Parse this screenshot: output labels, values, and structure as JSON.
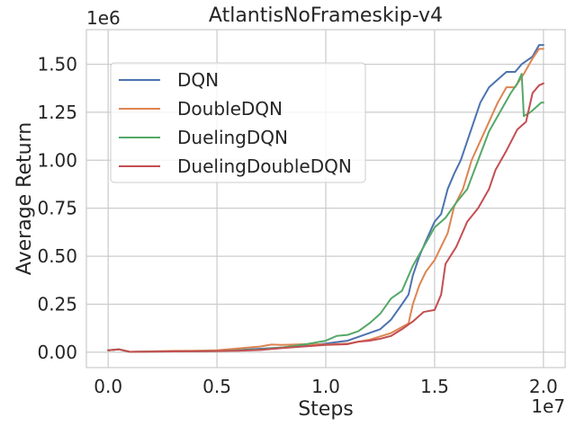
{
  "chart_data": {
    "type": "line",
    "title": "AtlantisNoFrameskip-v4",
    "xlabel": "Steps",
    "ylabel": "Average Return",
    "x_offset_label": "1e7",
    "y_offset_label": "1e6",
    "x_ticks": [
      0,
      5000000,
      10000000,
      15000000,
      20000000
    ],
    "x_tick_labels": [
      "0.0",
      "0.5",
      "1.0",
      "1.5",
      "2.0"
    ],
    "y_ticks": [
      0,
      250000,
      500000,
      750000,
      1000000,
      1250000,
      1500000
    ],
    "y_tick_labels": [
      "0.00",
      "0.25",
      "0.50",
      "0.75",
      "1.00",
      "1.25",
      "1.50"
    ],
    "xlim": [
      -1000000,
      21000000
    ],
    "ylim": [
      -80000,
      1680000
    ],
    "grid": true,
    "legend_position": "upper-left",
    "series": [
      {
        "name": "DQN",
        "color": "#4c72b0",
        "points": [
          [
            0,
            10000
          ],
          [
            500000,
            15000
          ],
          [
            1000000,
            2000
          ],
          [
            2000000,
            4000
          ],
          [
            3000000,
            5000
          ],
          [
            4000000,
            6000
          ],
          [
            5000000,
            8000
          ],
          [
            6000000,
            12000
          ],
          [
            7000000,
            18000
          ],
          [
            8000000,
            25000
          ],
          [
            9000000,
            33000
          ],
          [
            10000000,
            45000
          ],
          [
            11000000,
            60000
          ],
          [
            12000000,
            100000
          ],
          [
            12500000,
            120000
          ],
          [
            13000000,
            170000
          ],
          [
            13500000,
            250000
          ],
          [
            13800000,
            300000
          ],
          [
            14000000,
            400000
          ],
          [
            14300000,
            500000
          ],
          [
            14600000,
            580000
          ],
          [
            15000000,
            680000
          ],
          [
            15300000,
            720000
          ],
          [
            15600000,
            850000
          ],
          [
            15900000,
            930000
          ],
          [
            16200000,
            1000000
          ],
          [
            16500000,
            1100000
          ],
          [
            16800000,
            1200000
          ],
          [
            17100000,
            1300000
          ],
          [
            17500000,
            1380000
          ],
          [
            17900000,
            1420000
          ],
          [
            18300000,
            1460000
          ],
          [
            18700000,
            1460000
          ],
          [
            19000000,
            1500000
          ],
          [
            19500000,
            1540000
          ],
          [
            19800000,
            1600000
          ],
          [
            20000000,
            1600000
          ]
        ]
      },
      {
        "name": "DoubleDQN",
        "color": "#dd8452",
        "points": [
          [
            0,
            10000
          ],
          [
            500000,
            15000
          ],
          [
            1000000,
            2000
          ],
          [
            2000000,
            5000
          ],
          [
            3000000,
            7000
          ],
          [
            4000000,
            8000
          ],
          [
            5000000,
            10000
          ],
          [
            6000000,
            20000
          ],
          [
            7000000,
            30000
          ],
          [
            7500000,
            40000
          ],
          [
            8000000,
            38000
          ],
          [
            9000000,
            42000
          ],
          [
            10000000,
            40000
          ],
          [
            11000000,
            45000
          ],
          [
            12000000,
            65000
          ],
          [
            13000000,
            100000
          ],
          [
            13800000,
            150000
          ],
          [
            14000000,
            250000
          ],
          [
            14300000,
            350000
          ],
          [
            14600000,
            420000
          ],
          [
            15000000,
            480000
          ],
          [
            15300000,
            550000
          ],
          [
            15600000,
            620000
          ],
          [
            15900000,
            760000
          ],
          [
            16300000,
            850000
          ],
          [
            16700000,
            1000000
          ],
          [
            17100000,
            1100000
          ],
          [
            17500000,
            1200000
          ],
          [
            17900000,
            1300000
          ],
          [
            18300000,
            1380000
          ],
          [
            18700000,
            1380000
          ],
          [
            19100000,
            1450000
          ],
          [
            19500000,
            1530000
          ],
          [
            19800000,
            1580000
          ],
          [
            20000000,
            1580000
          ]
        ]
      },
      {
        "name": "DuelingDQN",
        "color": "#55a868",
        "points": [
          [
            0,
            10000
          ],
          [
            500000,
            15000
          ],
          [
            1000000,
            2000
          ],
          [
            2000000,
            3000
          ],
          [
            3000000,
            4000
          ],
          [
            4000000,
            5000
          ],
          [
            5000000,
            6000
          ],
          [
            6000000,
            10000
          ],
          [
            7000000,
            14000
          ],
          [
            8000000,
            25000
          ],
          [
            9000000,
            40000
          ],
          [
            10000000,
            60000
          ],
          [
            10500000,
            85000
          ],
          [
            11000000,
            90000
          ],
          [
            11500000,
            110000
          ],
          [
            12000000,
            150000
          ],
          [
            12500000,
            200000
          ],
          [
            13000000,
            280000
          ],
          [
            13500000,
            320000
          ],
          [
            14000000,
            450000
          ],
          [
            14500000,
            550000
          ],
          [
            15000000,
            650000
          ],
          [
            15500000,
            700000
          ],
          [
            16000000,
            780000
          ],
          [
            16500000,
            850000
          ],
          [
            17000000,
            1000000
          ],
          [
            17500000,
            1150000
          ],
          [
            18000000,
            1250000
          ],
          [
            18500000,
            1350000
          ],
          [
            18800000,
            1400000
          ],
          [
            19000000,
            1450000
          ],
          [
            19100000,
            1230000
          ],
          [
            19400000,
            1250000
          ],
          [
            19700000,
            1280000
          ],
          [
            19900000,
            1300000
          ],
          [
            20000000,
            1300000
          ]
        ]
      },
      {
        "name": "DuelingDoubleDQN",
        "color": "#c44e52",
        "points": [
          [
            0,
            10000
          ],
          [
            500000,
            15000
          ],
          [
            1000000,
            2000
          ],
          [
            2000000,
            3000
          ],
          [
            3000000,
            4000
          ],
          [
            4000000,
            5000
          ],
          [
            5000000,
            6000
          ],
          [
            6000000,
            8000
          ],
          [
            7000000,
            12000
          ],
          [
            8000000,
            22000
          ],
          [
            9000000,
            30000
          ],
          [
            10000000,
            38000
          ],
          [
            11000000,
            42000
          ],
          [
            11500000,
            55000
          ],
          [
            12000000,
            60000
          ],
          [
            12500000,
            70000
          ],
          [
            13000000,
            85000
          ],
          [
            13500000,
            120000
          ],
          [
            14000000,
            160000
          ],
          [
            14500000,
            210000
          ],
          [
            15000000,
            220000
          ],
          [
            15300000,
            300000
          ],
          [
            15500000,
            460000
          ],
          [
            16000000,
            550000
          ],
          [
            16500000,
            680000
          ],
          [
            17000000,
            750000
          ],
          [
            17500000,
            850000
          ],
          [
            17800000,
            950000
          ],
          [
            18300000,
            1050000
          ],
          [
            18800000,
            1160000
          ],
          [
            19200000,
            1200000
          ],
          [
            19500000,
            1350000
          ],
          [
            19800000,
            1390000
          ],
          [
            20000000,
            1400000
          ]
        ]
      }
    ]
  }
}
